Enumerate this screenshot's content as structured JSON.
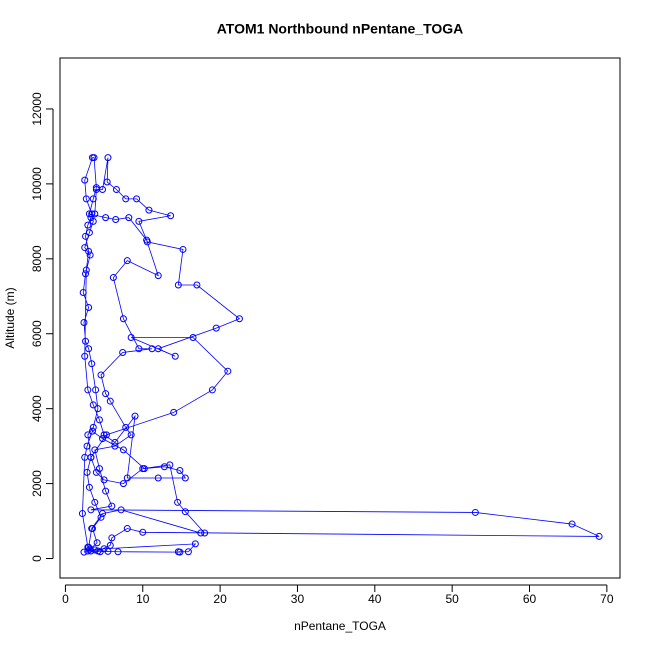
{
  "chart_data": {
    "type": "line",
    "title": "ATOM1 Northbound nPentane_TOGA",
    "x_label": "nPentane_TOGA",
    "y_label": "Altitude (m)",
    "color": "#0000ff",
    "xlim": [
      -0.7,
      71.7
    ],
    "ylim": [
      -520,
      13360
    ],
    "xticks": [
      0,
      10,
      20,
      30,
      40,
      50,
      60,
      70
    ],
    "yticks": [
      0,
      2000,
      4000,
      6000,
      8000,
      10000,
      12000
    ],
    "x": [
      2.4,
      3.2,
      4.1,
      3.5,
      4.6,
      3.8,
      3.1,
      2.8,
      3.3,
      2.9,
      3.6,
      4.2,
      3.9,
      3.4,
      3.0,
      2.6,
      2.4,
      3.0,
      2.3,
      2.6,
      3.2,
      2.5,
      3.1,
      3.6,
      3.4,
      2.7,
      2.5,
      3.5,
      3.7,
      4.0,
      3.6,
      3.1,
      5.2,
      6.5,
      8.2,
      10.5,
      12.0,
      8.0,
      6.2,
      7.5,
      9.5,
      11.2,
      7.4,
      4.6,
      5.2,
      5.8,
      7.8,
      8.5,
      6.4,
      3.8,
      4.4,
      5.2,
      6.0,
      3.3,
      53.0,
      65.5,
      69.0,
      10.0,
      8.0,
      6.0,
      5.8,
      4.2,
      3.0,
      3.4,
      4.8,
      7.2,
      17.5,
      18.0,
      15.5,
      14.5,
      13.5,
      10.0,
      7.5,
      5.0,
      4.0,
      3.3,
      5.3,
      14.0,
      19.0,
      21.0,
      16.5,
      8.5,
      14.2,
      12.0,
      19.5,
      22.5,
      17.0,
      14.6,
      15.2,
      10.6,
      9.5,
      13.6,
      10.8,
      9.2,
      7.8,
      6.6,
      5.4,
      5.5,
      4.8,
      4.0,
      3.8,
      3.3,
      2.9,
      2.6,
      3.0,
      2.7,
      2.5,
      2.9,
      3.6,
      4.4,
      5.0,
      6.4,
      9.0,
      8.0,
      12.0,
      15.5,
      14.8,
      12.8,
      10.2,
      7.5,
      4.8,
      3.5,
      2.8,
      2.5,
      2.2,
      2.9,
      3.3,
      4.5,
      5.5,
      6.8,
      14.8,
      14.6,
      15.9,
      16.8,
      5.0,
      3.8,
      2.9
    ],
    "values": [
      170,
      250,
      420,
      800,
      1100,
      1500,
      1900,
      2300,
      2700,
      3300,
      3500,
      4000,
      4500,
      5200,
      5600,
      5800,
      6300,
      6700,
      7100,
      7600,
      8100,
      8300,
      8700,
      9000,
      9200,
      9600,
      10100,
      10700,
      10700,
      9900,
      9600,
      9200,
      9100,
      9050,
      9100,
      8500,
      7550,
      7950,
      7500,
      6400,
      5600,
      5600,
      5500,
      4900,
      4400,
      4200,
      3500,
      3300,
      3000,
      2900,
      2400,
      1800,
      1400,
      1300,
      1230,
      920,
      590,
      700,
      800,
      550,
      350,
      200,
      300,
      800,
      1200,
      1300,
      680,
      680,
      1250,
      1500,
      2500,
      2400,
      2000,
      2100,
      2300,
      2700,
      3300,
      3900,
      4500,
      5000,
      5900,
      5900,
      5400,
      5600,
      6150,
      6400,
      7300,
      7300,
      8250,
      8450,
      9000,
      9150,
      9300,
      9600,
      9600,
      9850,
      10050,
      10700,
      9850,
      9850,
      9200,
      9100,
      8900,
      8600,
      8200,
      7700,
      5400,
      4500,
      4100,
      3700,
      3300,
      3100,
      3800,
      2150,
      2150,
      2150,
      2350,
      2450,
      2400,
      2900,
      3200,
      3400,
      3000,
      2700,
      1200,
      300,
      200,
      180,
      190,
      180,
      170,
      180,
      180,
      390,
      260,
      230,
      200
    ]
  }
}
